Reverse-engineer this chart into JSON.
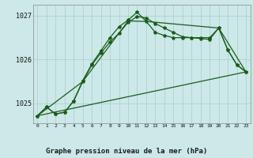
{
  "title": "Graphe pression niveau de la mer (hPa)",
  "bg_color": "#cce8e8",
  "line_color": "#1a5c1a",
  "grid_color": "#aacccc",
  "footer_bg": "#3a6b3a",
  "footer_text_color": "#ffffff",
  "xlim": [
    -0.5,
    23.5
  ],
  "ylim": [
    1024.55,
    1027.25
  ],
  "yticks": [
    1025,
    1026,
    1027
  ],
  "xticks": [
    0,
    1,
    2,
    3,
    4,
    5,
    6,
    7,
    8,
    9,
    10,
    11,
    12,
    13,
    14,
    15,
    16,
    17,
    18,
    19,
    20,
    21,
    22,
    23
  ],
  "line1_x": [
    0,
    1,
    2,
    3,
    4,
    5,
    6,
    7,
    8,
    9,
    10,
    11,
    12,
    13,
    14,
    15,
    16,
    17,
    18,
    19,
    20,
    21,
    22,
    23
  ],
  "line1_y": [
    1024.72,
    1024.92,
    1024.76,
    1024.8,
    1025.06,
    1025.52,
    1025.9,
    1026.2,
    1026.5,
    1026.75,
    1026.9,
    1027.08,
    1026.87,
    1026.62,
    1026.55,
    1026.5,
    1026.5,
    1026.5,
    1026.5,
    1026.5,
    1026.72,
    1026.22,
    1025.88,
    1025.72
  ],
  "line2_x": [
    0,
    1,
    2,
    3,
    4,
    5,
    6,
    7,
    8,
    9,
    10,
    11,
    12,
    13,
    14,
    15,
    16,
    17,
    18,
    19,
    20,
    21,
    22,
    23
  ],
  "line2_y": [
    1024.72,
    1024.92,
    1024.76,
    1024.8,
    1025.06,
    1025.5,
    1025.88,
    1026.15,
    1026.4,
    1026.6,
    1026.85,
    1026.98,
    1026.95,
    1026.82,
    1026.72,
    1026.62,
    1026.52,
    1026.5,
    1026.48,
    1026.46,
    1026.72,
    1026.22,
    1025.88,
    1025.72
  ],
  "line3_x": [
    0,
    23
  ],
  "line3_y": [
    1024.72,
    1025.72
  ],
  "line4_x": [
    0,
    5,
    10,
    12,
    20,
    23
  ],
  "line4_y": [
    1024.72,
    1025.5,
    1026.88,
    1026.87,
    1026.72,
    1025.72
  ]
}
